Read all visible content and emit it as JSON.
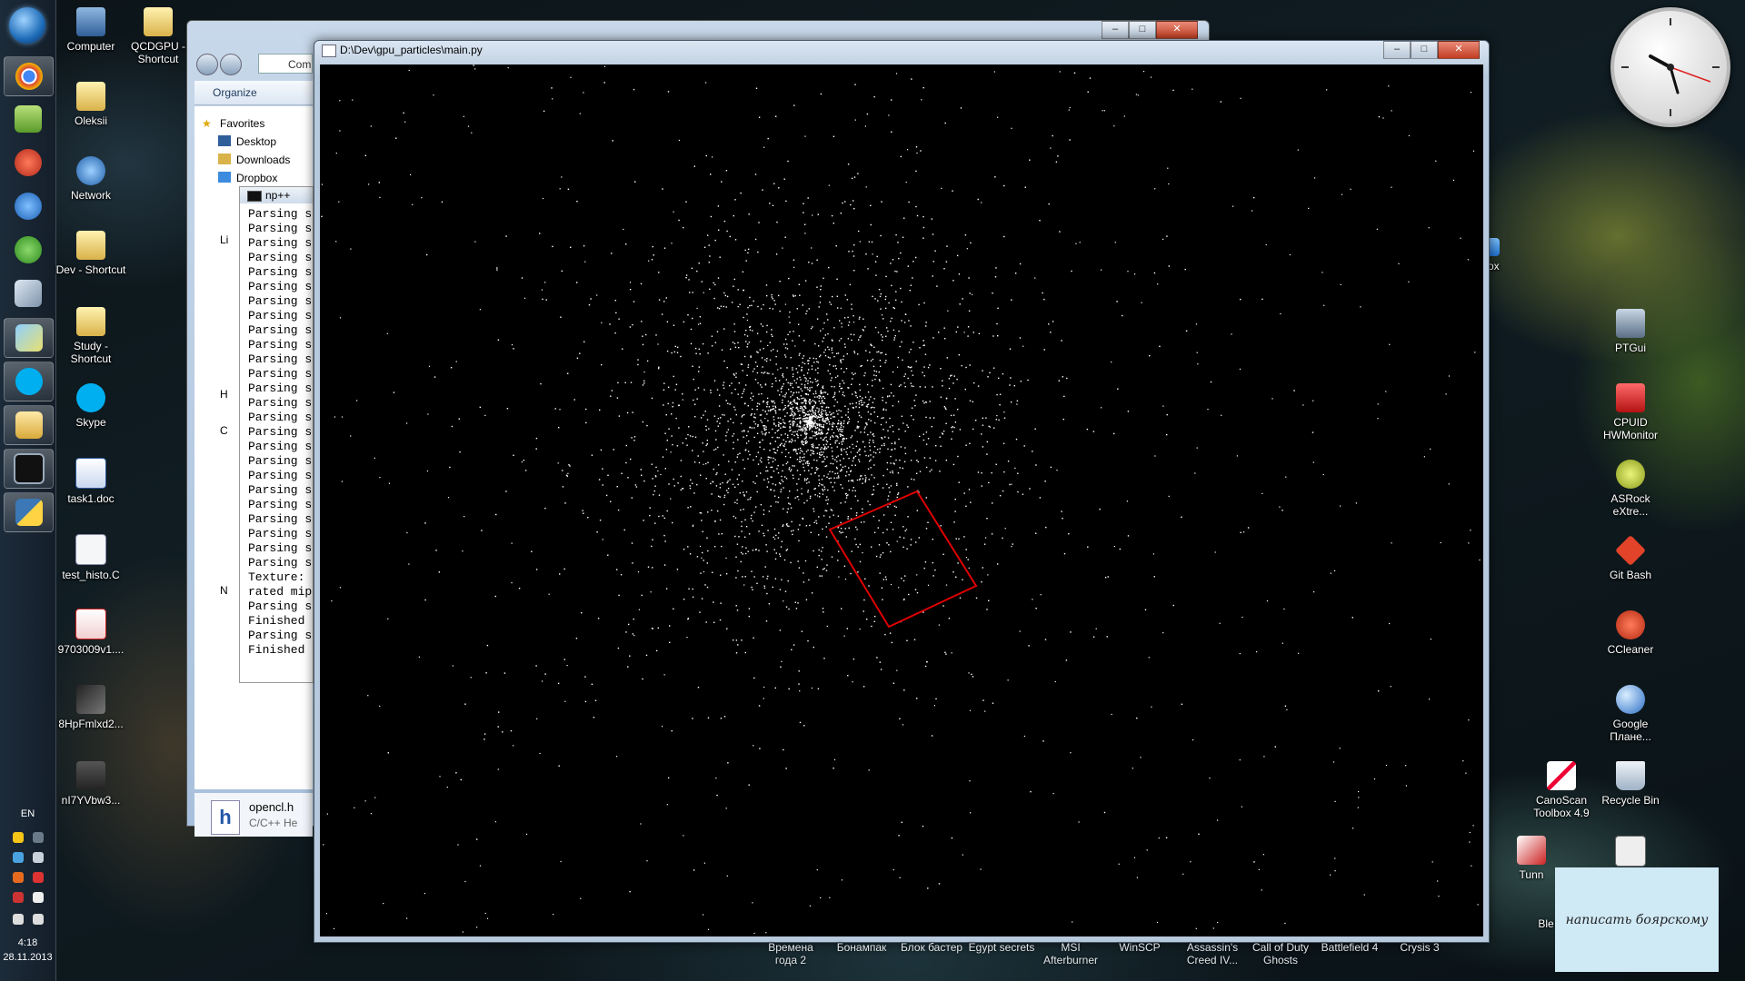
{
  "taskbar": {
    "pinned": [
      "chrome-icon",
      "notepad-icon",
      "paint-icon",
      "ie-icon",
      "utorrent-icon",
      "box-icon",
      "messenger-icon",
      "skype-icon",
      "explorer-icon",
      "console-icon",
      "python-icon"
    ],
    "lang": "EN",
    "time": "4:18",
    "date": "28.11.2013"
  },
  "desktop_left": [
    {
      "label": "Computer",
      "name": "computer"
    },
    {
      "label": "QCDGPU - Shortcut",
      "name": "qcdgpu-shortcut"
    },
    {
      "label": "Oleksii",
      "name": "oleksii"
    },
    {
      "label": "Network",
      "name": "network"
    },
    {
      "label": "Dev - Shortcut",
      "name": "dev-shortcut"
    },
    {
      "label": "Study - Shortcut",
      "name": "study-shortcut"
    },
    {
      "label": "Skype",
      "name": "skype"
    },
    {
      "label": "task1.doc",
      "name": "task1-doc"
    },
    {
      "label": "test_histo.C",
      "name": "test-histo"
    },
    {
      "label": "9703009v1....",
      "name": "pdf-file"
    },
    {
      "label": "8HpFmlxd2...",
      "name": "image-file"
    },
    {
      "label": "nI7YVbw3...",
      "name": "video-file"
    }
  ],
  "desktop_right": [
    {
      "label": "box",
      "name": "dropbox-partial"
    },
    {
      "label": "PTGui",
      "name": "ptgui"
    },
    {
      "label": "CPUID HWMonitor",
      "name": "hwmonitor"
    },
    {
      "label": "ASRock eXtre...",
      "name": "asrock"
    },
    {
      "label": "Git Bash",
      "name": "git-bash"
    },
    {
      "label": "CCleaner",
      "name": "ccleaner"
    },
    {
      "label": "Google Плане...",
      "name": "google-earth"
    },
    {
      "label": "CanoScan Toolbox 4.9",
      "name": "canoscan"
    },
    {
      "label": "Recycle Bin",
      "name": "recycle-bin"
    },
    {
      "label": "Tunn",
      "name": "tunngle-partial"
    },
    {
      "label": "Ble",
      "name": "ble-partial"
    }
  ],
  "desktop_bottom": [
    {
      "label": "Времена года 2",
      "name": "vremena-goda"
    },
    {
      "label": "Бонампак",
      "name": "bonampak"
    },
    {
      "label": "Блок бастер",
      "name": "blok-baster"
    },
    {
      "label": "Egypt secrets",
      "name": "egypt-secrets"
    },
    {
      "label": "MSI Afterburner",
      "name": "msi-afterburner"
    },
    {
      "label": "WinSCP",
      "name": "winscp"
    },
    {
      "label": "Assassin's Creed IV...",
      "name": "assassins-creed"
    },
    {
      "label": "Call of Duty Ghosts",
      "name": "call-of-duty"
    },
    {
      "label": "Battlefield 4",
      "name": "battlefield"
    },
    {
      "label": "Crysis 3",
      "name": "crysis"
    }
  ],
  "explorer": {
    "address": "Com",
    "organize": "Organize",
    "nav": [
      "Favorites",
      "Desktop",
      "Downloads",
      "Dropbox",
      "Li",
      "H",
      "C",
      "N"
    ],
    "details_name": "opencl.h",
    "details_type": "C/C++ He"
  },
  "console": {
    "title": "np++",
    "lines": [
      "Parsing s",
      "Parsing s",
      "Parsing s",
      "Parsing s",
      "Parsing s",
      "Parsing s",
      "Parsing s",
      "Parsing s",
      "Parsing s",
      "Parsing s",
      "Parsing s",
      "Parsing s",
      "Parsing s",
      "Parsing s",
      "Parsing s",
      "Parsing s",
      "Parsing s",
      "Parsing s",
      "Parsing s",
      "Parsing s",
      "Parsing s",
      "Parsing s",
      "Parsing s",
      "Parsing s",
      "Parsing s",
      "Texture:",
      "rated mip",
      "Parsing s",
      "Finished",
      "Parsing s",
      "Finished"
    ]
  },
  "glwindow": {
    "title": "D:\\Dev\\gpu_particles\\main.py",
    "particles": {
      "count": 3000,
      "center": [
        0.42,
        0.41
      ],
      "spread": 0.11,
      "color": "#ffffff"
    },
    "selection_color": "#e00000"
  },
  "note": {
    "text": "написать боярскому"
  }
}
